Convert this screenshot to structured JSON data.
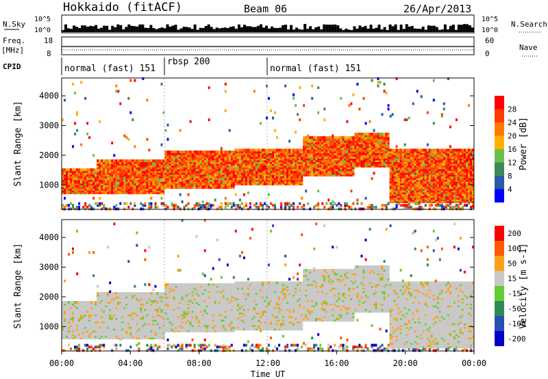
{
  "header": {
    "site": "Hokkaido (fitACF)",
    "beam": "Beam 06",
    "date": "26/Apr/2013"
  },
  "side_labels": {
    "nsky": "N.Sky",
    "nsearch": "N.Search",
    "freq": "Freq.",
    "freq_unit": "[MHz]",
    "nave": "Nave",
    "cpid": "CPID"
  },
  "cpid_segments": [
    {
      "label": "normal (fast) 151",
      "start_h": 0,
      "end_h": 6
    },
    {
      "label": "rbsp 200",
      "start_h": 6,
      "end_h": 12
    },
    {
      "label": "normal (fast) 151",
      "start_h": 12,
      "end_h": 24
    }
  ],
  "colors": {
    "power": [
      "#0000ff",
      "#2b5aa6",
      "#3c8a5a",
      "#6cc04a",
      "#ffb000",
      "#ff7800",
      "#ff3c00",
      "#ff0000"
    ],
    "velocity": [
      "#0000c8",
      "#2850b4",
      "#2e8b57",
      "#66cc33",
      "#c8c8c8",
      "#ff9f1a",
      "#ff5a00",
      "#ff0000"
    ],
    "scatter_gray": "#c8c8c8"
  },
  "chart_data": [
    {
      "type": "line",
      "name": "nsky-nsearch-panel",
      "y_left_ticks": [
        "10^5",
        "10^0"
      ],
      "y_right_ticks": [
        "10^5",
        "10^0"
      ],
      "x_range_h": [
        0,
        24
      ]
    },
    {
      "type": "line",
      "name": "freq-nave-panel",
      "y_left_ticks": [
        "18",
        "8"
      ],
      "y_right_ticks": [
        "60",
        "0"
      ],
      "freq_mhz_approx": 10.5,
      "nave_approx": 33
    },
    {
      "type": "heatmap",
      "name": "power",
      "xlabel": "",
      "ylabel": "Slant Range [km]",
      "x_ticks": [
        "00:00",
        "04:00",
        "08:00",
        "12:00",
        "16:00",
        "20:00",
        "00:00"
      ],
      "xlim_h": [
        0,
        24
      ],
      "y_ticks": [
        "1000",
        "2000",
        "3000",
        "4000"
      ],
      "ylim_km": [
        180,
        4600
      ],
      "colorbar_label": "Power [dB]",
      "colorbar_ticks": [
        "4",
        "8",
        "12",
        "16",
        "20",
        "24",
        "28"
      ],
      "scatter_bands": [
        {
          "start_h": 0,
          "end_h": 2,
          "low_km": 700,
          "high_km": 1500
        },
        {
          "start_h": 2,
          "end_h": 6,
          "low_km": 700,
          "high_km": 1800
        },
        {
          "start_h": 6,
          "end_h": 10,
          "low_km": 900,
          "high_km": 2100
        },
        {
          "start_h": 10,
          "end_h": 14,
          "low_km": 1000,
          "high_km": 2200
        },
        {
          "start_h": 14,
          "end_h": 17,
          "low_km": 1300,
          "high_km": 2600
        },
        {
          "start_h": 17,
          "end_h": 19,
          "low_km": 1600,
          "high_km": 2700
        },
        {
          "start_h": 19,
          "end_h": 24,
          "low_km": 400,
          "high_km": 2200
        }
      ]
    },
    {
      "type": "heatmap",
      "name": "velocity",
      "xlabel": "Time UT",
      "ylabel": "Slant Range [km]",
      "x_ticks": [
        "00:00",
        "04:00",
        "08:00",
        "12:00",
        "16:00",
        "20:00",
        "00:00"
      ],
      "xlim_h": [
        0,
        24
      ],
      "y_ticks": [
        "1000",
        "2000",
        "3000",
        "4000"
      ],
      "ylim_km": [
        180,
        4600
      ],
      "colorbar_label": "Velocity [m s-1]",
      "colorbar_ticks": [
        "200",
        "100",
        "50",
        "15",
        "-15",
        "-50",
        "-100",
        "-200"
      ]
    }
  ]
}
